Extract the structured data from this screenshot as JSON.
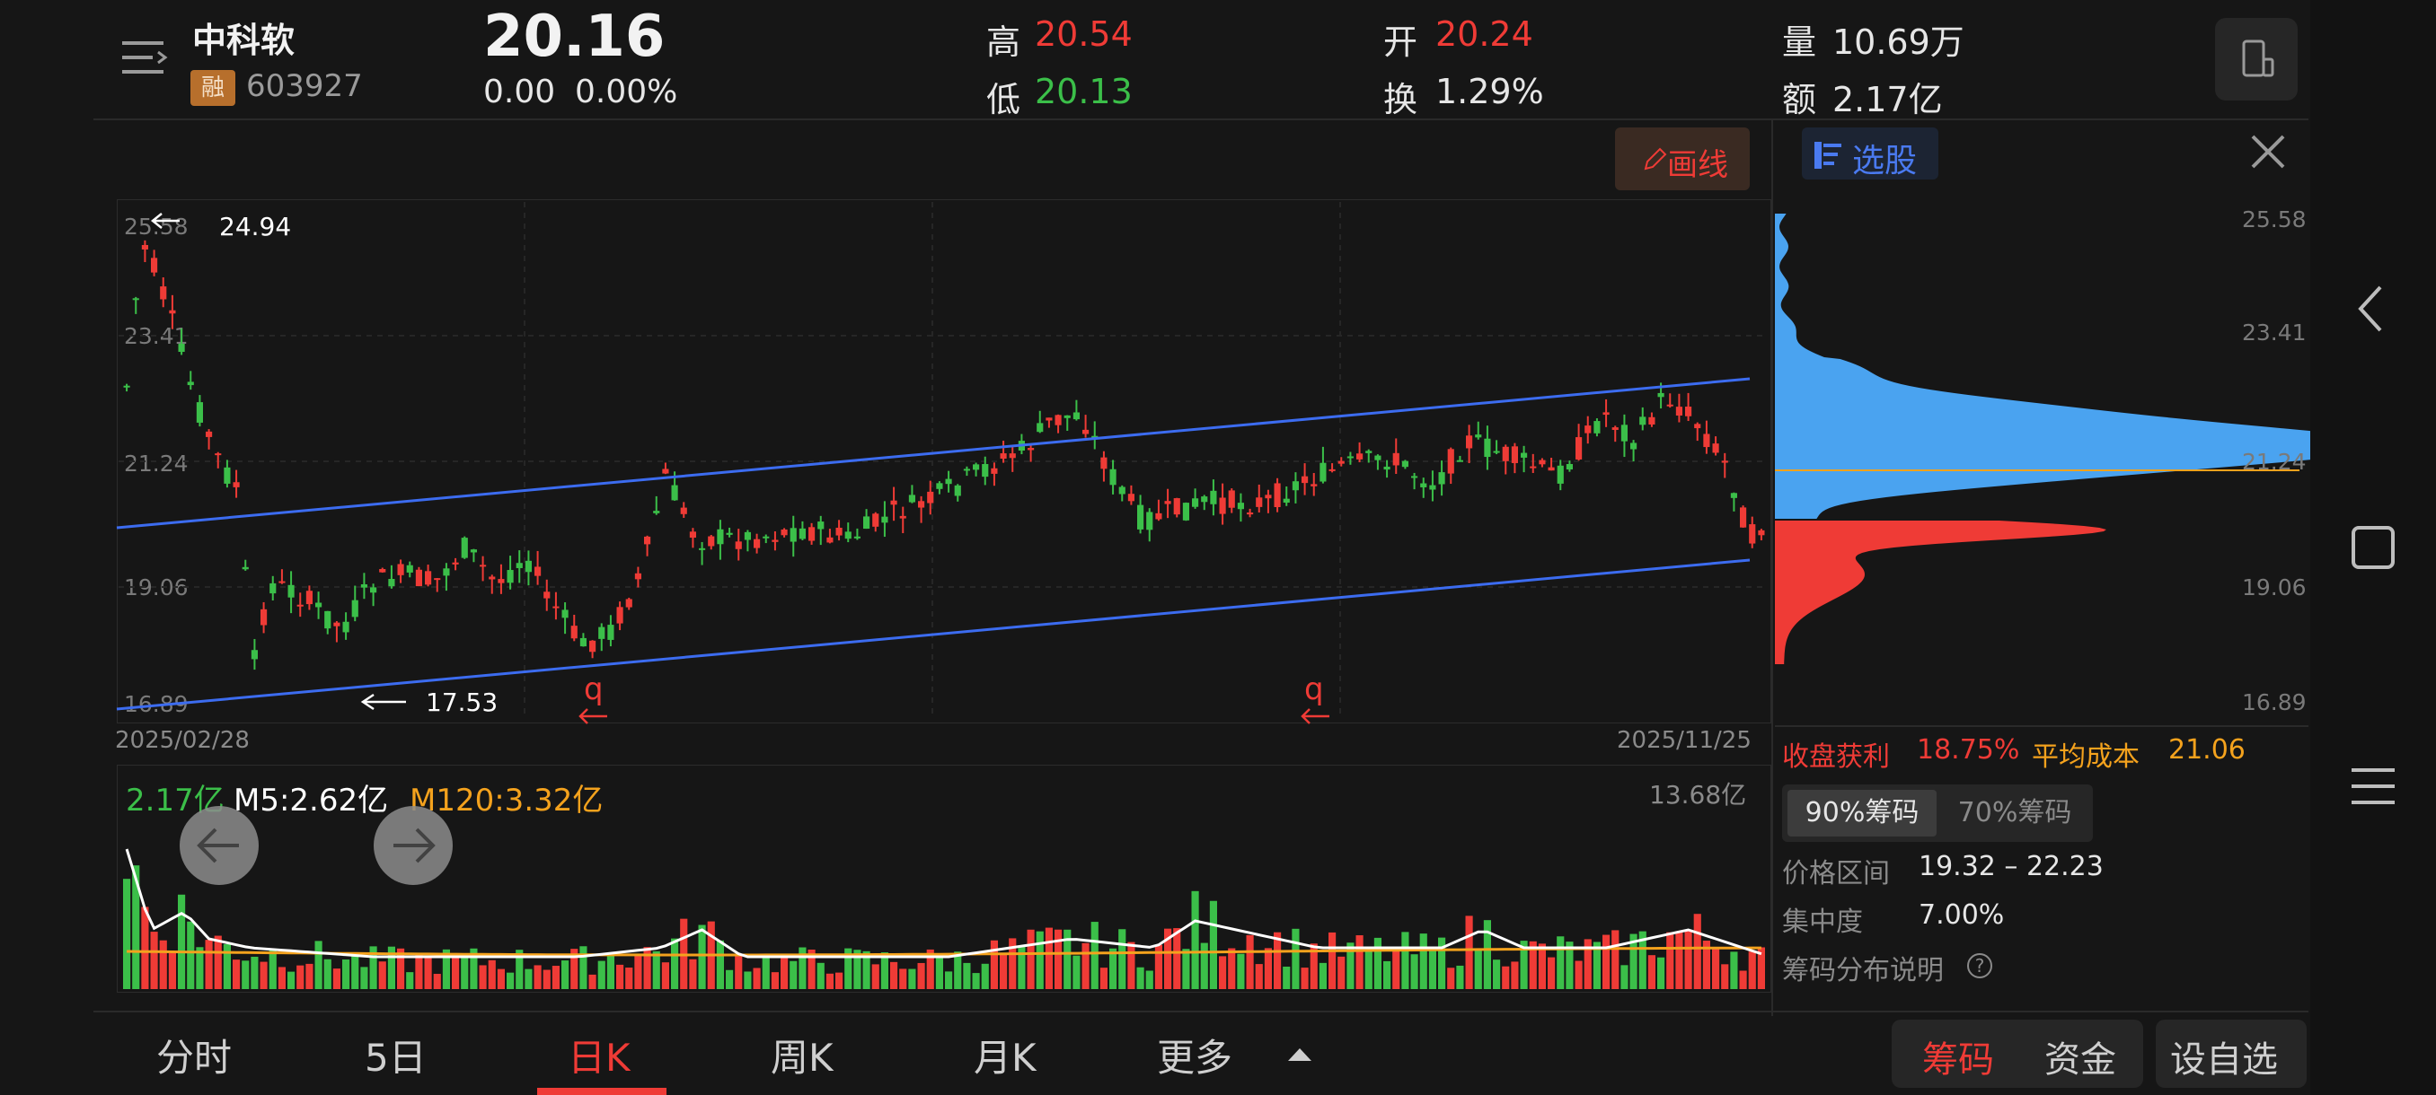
{
  "header": {
    "stock_name": "中科软",
    "badge": "融",
    "code": "603927",
    "price": "20.16",
    "change": "0.00",
    "change_pct": "0.00%",
    "high_label": "高",
    "high": "20.54",
    "low_label": "低",
    "low": "20.13",
    "open_label": "开",
    "open": "20.24",
    "turnover_label": "换",
    "turnover": "1.29%",
    "volume_label": "量",
    "volume": "10.69万",
    "amount_label": "额",
    "amount": "2.17亿"
  },
  "toolbar": {
    "draw_label": "画线",
    "select_label": "选股"
  },
  "kline": {
    "y_ticks": [
      "25.58",
      "23.41",
      "21.24",
      "19.06",
      "16.89"
    ],
    "start_date": "2025/02/28",
    "end_date": "2025/11/25",
    "max_label": "24.94",
    "min_label": "17.53",
    "event_marker": "q"
  },
  "volume_panel": {
    "current": "2.17亿",
    "m5": "M5:2.62亿",
    "m120": "M120:3.32亿",
    "max": "13.68亿"
  },
  "chips": {
    "y_ticks": [
      "25.58",
      "23.41",
      "21.24",
      "19.06",
      "16.89"
    ],
    "profit_label": "收盘获利",
    "profit": "18.75%",
    "avg_cost_label": "平均成本",
    "avg_cost": "21.06",
    "tab_90": "90%筹码",
    "tab_70": "70%筹码",
    "range_label": "价格区间",
    "range": "19.32 – 22.23",
    "concentration_label": "集中度",
    "concentration": "7.00%",
    "explain_label": "筹码分布说明"
  },
  "bottom_tabs": [
    "分时",
    "5日",
    "日K",
    "周K",
    "月K",
    "更多"
  ],
  "bottom_right": {
    "chips": "筹码",
    "funds": "资金",
    "watchlist": "设自选"
  },
  "colors": {
    "up": "#ef3b36",
    "down": "#3bbf49",
    "channel": "#3c6cf0",
    "m120": "#f4a21d",
    "chips_blue": "#4aa3f0"
  }
}
